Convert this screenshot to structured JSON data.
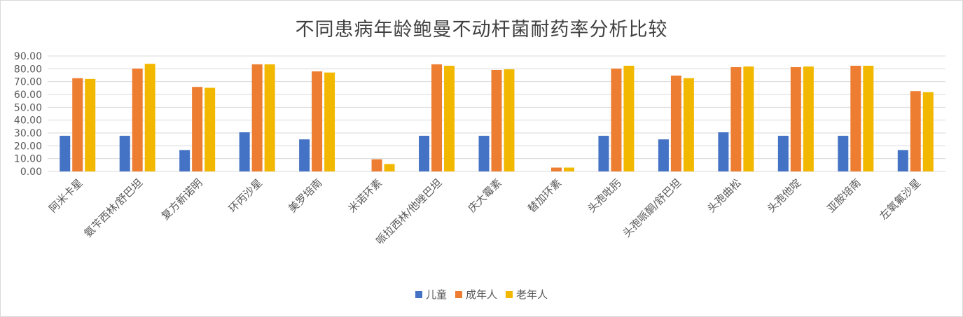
{
  "chart_data": {
    "type": "bar",
    "title": "不同患病年龄鲍曼不动杆菌耐药率分析比较",
    "xlabel": "",
    "ylabel": "",
    "ylim": [
      0,
      90
    ],
    "yticks": [
      "0.00",
      "10.00",
      "20.00",
      "30.00",
      "40.00",
      "50.00",
      "60.00",
      "70.00",
      "80.00",
      "90.00"
    ],
    "grid": true,
    "legend_position": "bottom",
    "categories": [
      "阿米卡星",
      "氨苄西林/舒巴坦",
      "复方新诺明",
      "环丙沙星",
      "美罗培南",
      "米诺环素",
      "哌拉西林/他唑巴坦",
      "庆大霉素",
      "替加环素",
      "头孢吡肟",
      "头孢哌酮/舒巴坦",
      "头孢曲松",
      "头孢他啶",
      "亚胺培南",
      "左氧氟沙星"
    ],
    "series": [
      {
        "name": "儿童",
        "color": "#4472c4",
        "values": [
          27.8,
          27.8,
          16.7,
          30.5,
          25.0,
          0,
          27.8,
          27.8,
          0,
          27.8,
          25.0,
          30.5,
          27.8,
          27.8,
          16.7
        ]
      },
      {
        "name": "成年人",
        "color": "#ed7d31",
        "values": [
          72.7,
          80.2,
          65.9,
          83.5,
          78.0,
          9.5,
          83.5,
          79.1,
          3.0,
          80.2,
          74.7,
          81.3,
          81.3,
          82.4,
          62.6
        ]
      },
      {
        "name": "老年人",
        "color": "#f2b800",
        "values": [
          72.1,
          83.9,
          65.2,
          83.5,
          77.1,
          5.8,
          82.4,
          79.6,
          3.0,
          82.4,
          72.7,
          81.8,
          81.8,
          82.4,
          61.8
        ]
      }
    ]
  }
}
